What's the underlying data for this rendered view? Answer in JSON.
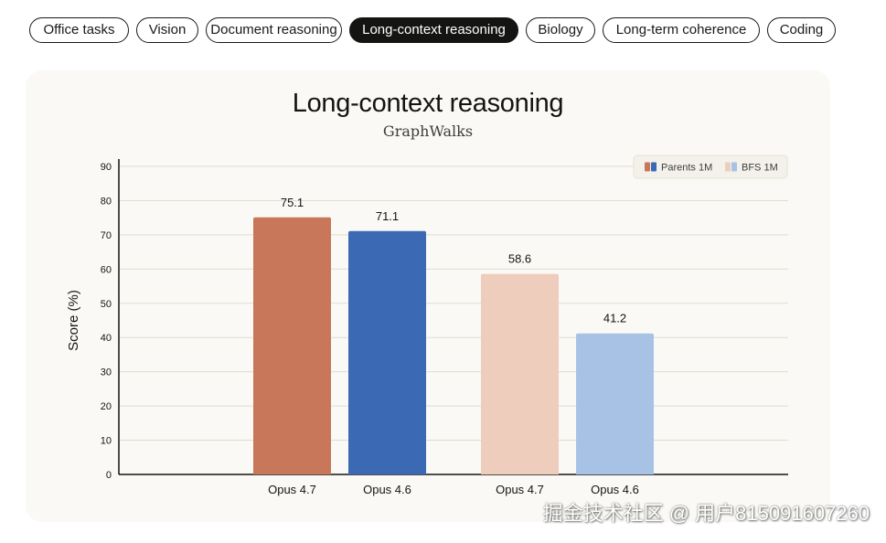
{
  "tabs": [
    {
      "label": "Office tasks",
      "active": false
    },
    {
      "label": "Vision",
      "active": false
    },
    {
      "label": "Document reasoning",
      "active": false
    },
    {
      "label": "Long-context reasoning",
      "active": true
    },
    {
      "label": "Biology",
      "active": false
    },
    {
      "label": "Long-term coherence",
      "active": false
    },
    {
      "label": "Coding",
      "active": false
    }
  ],
  "watermark": "掘金技术社区 @ 用户815091607260",
  "chart_data": {
    "type": "bar",
    "title": "Long-context reasoning",
    "subtitle": "GraphWalks",
    "ylabel": "Score (%)",
    "xlabel": "",
    "ylim": [
      0,
      90
    ],
    "yticks": [
      0,
      10,
      20,
      30,
      40,
      50,
      60,
      70,
      80,
      90
    ],
    "grid": true,
    "legend_position": "top-right",
    "groups": [
      {
        "name": "Parents 1M",
        "bars": [
          {
            "label": "Opus 4.7",
            "value": 75.1,
            "color": "#c8775a"
          },
          {
            "label": "Opus 4.6",
            "value": 71.1,
            "color": "#3b69b3"
          }
        ]
      },
      {
        "name": "BFS 1M",
        "bars": [
          {
            "label": "Opus 4.7",
            "value": 58.6,
            "color": "#eecdbd"
          },
          {
            "label": "Opus 4.6",
            "value": 41.2,
            "color": "#a8c2e6"
          }
        ]
      }
    ],
    "legend": [
      {
        "label": "Parents 1M",
        "colors": [
          "#c8775a",
          "#3b69b3"
        ]
      },
      {
        "label": "BFS 1M",
        "colors": [
          "#eecdbd",
          "#a8c2e6"
        ]
      }
    ]
  }
}
